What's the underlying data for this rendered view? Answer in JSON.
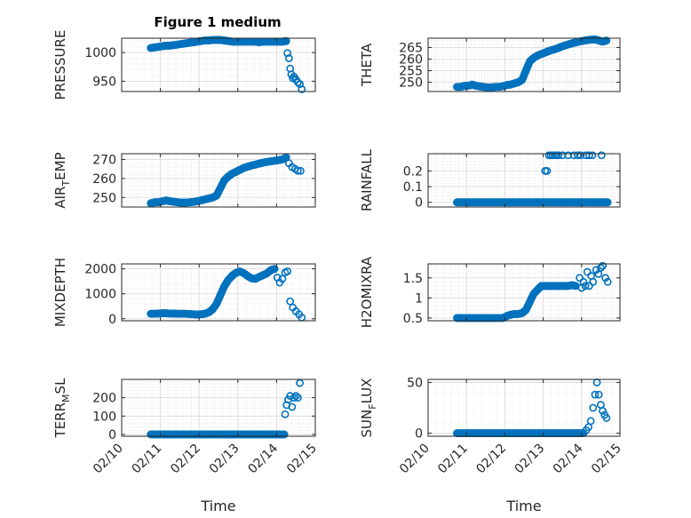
{
  "figure": {
    "title": "Figure 1 medium",
    "marker_color": "#0072BD",
    "axis_color": "#262626",
    "grid_color": "#d9d9d9"
  },
  "chart_data": [
    {
      "type": "scatter",
      "id": "pressure",
      "ylabel": "PRESSURE",
      "ylim": [
        932,
        1025
      ],
      "yticks": [
        950,
        1000
      ],
      "ytick_labels": [
        "950",
        "1000"
      ],
      "xlim": [
        0,
        5
      ],
      "xticks": [
        0,
        1,
        2,
        3,
        4,
        5
      ],
      "xtick_labels": [],
      "xlabel": "",
      "grid": true,
      "segments": [
        {
          "x": [
            0.75,
            0.85,
            0.95,
            1.05,
            1.15,
            1.25,
            1.35,
            1.45,
            1.55,
            1.65,
            1.75,
            1.85,
            1.95,
            2.05,
            2.15,
            2.25,
            2.35,
            2.45,
            2.55,
            2.65,
            2.75,
            2.85,
            2.95,
            3.05,
            3.15,
            3.25,
            3.35,
            3.45,
            3.55,
            3.65,
            3.75,
            3.85,
            3.95,
            4.05,
            4.15,
            4.25
          ],
          "y": [
            1008,
            1009,
            1010,
            1011,
            1012,
            1012,
            1013,
            1014,
            1015,
            1016,
            1017,
            1018,
            1019,
            1020,
            1021,
            1021,
            1022,
            1022,
            1022,
            1021,
            1020,
            1019,
            1019,
            1019,
            1019,
            1019,
            1019,
            1019,
            1018,
            1019,
            1019,
            1019,
            1019,
            1019,
            1019,
            1020
          ]
        }
      ],
      "points": [
        [
          4.28,
          999
        ],
        [
          4.32,
          990
        ],
        [
          4.35,
          972
        ],
        [
          4.38,
          962
        ],
        [
          4.42,
          955
        ],
        [
          4.45,
          958
        ],
        [
          4.5,
          953
        ],
        [
          4.55,
          948
        ],
        [
          4.6,
          945
        ],
        [
          4.65,
          936
        ]
      ]
    },
    {
      "type": "scatter",
      "id": "theta",
      "ylabel": "THETA",
      "ylim": [
        246,
        269
      ],
      "yticks": [
        250,
        255,
        260,
        265
      ],
      "ytick_labels": [
        "250",
        "255",
        "260",
        "265"
      ],
      "xlim": [
        0,
        5
      ],
      "xticks": [
        0,
        1,
        2,
        3,
        4,
        5
      ],
      "xtick_labels": [],
      "xlabel": "",
      "grid": true,
      "segments": [
        {
          "x": [
            0.75,
            0.85,
            0.95,
            1.05,
            1.15,
            1.25,
            1.35,
            1.45,
            1.55,
            1.65,
            1.75,
            1.85,
            1.95,
            2.05,
            2.15,
            2.25,
            2.35,
            2.45,
            2.55,
            2.65,
            2.75,
            2.85,
            2.95,
            3.05,
            3.15,
            3.25,
            3.35,
            3.45,
            3.55,
            3.65,
            3.75,
            3.85,
            3.95,
            4.05,
            4.15,
            4.25,
            4.35,
            4.45,
            4.55,
            4.65
          ],
          "y": [
            248,
            248,
            248.5,
            248.5,
            249,
            248.5,
            248.2,
            248,
            247.8,
            247.8,
            248,
            248,
            248.3,
            248.8,
            249,
            249.5,
            250,
            251,
            255,
            259,
            260.5,
            261.5,
            262.2,
            262.8,
            263.5,
            264,
            264.5,
            265.2,
            265.8,
            266.3,
            266.8,
            267.2,
            267.6,
            267.9,
            268.2,
            268.4,
            268.5,
            268,
            267.5,
            268
          ]
        }
      ],
      "points": []
    },
    {
      "type": "scatter",
      "id": "air_temp",
      "ylabel": "AIR_TEMP",
      "ylim": [
        245,
        273
      ],
      "yticks": [
        250,
        260,
        270
      ],
      "ytick_labels": [
        "250",
        "260",
        "270"
      ],
      "xlim": [
        0,
        5
      ],
      "xticks": [
        0,
        1,
        2,
        3,
        4,
        5
      ],
      "xtick_labels": [],
      "xlabel": "",
      "grid": true,
      "segments": [
        {
          "x": [
            0.75,
            0.85,
            0.95,
            1.05,
            1.15,
            1.25,
            1.35,
            1.45,
            1.55,
            1.65,
            1.75,
            1.85,
            1.95,
            2.05,
            2.15,
            2.25,
            2.35,
            2.45,
            2.55,
            2.65,
            2.75,
            2.85,
            2.95,
            3.05,
            3.15,
            3.25,
            3.35,
            3.45,
            3.55,
            3.65,
            3.75,
            3.85,
            3.95,
            4.05,
            4.15,
            4.25
          ],
          "y": [
            247,
            247.5,
            247.5,
            248,
            248.5,
            248,
            247.8,
            247.5,
            247.3,
            247.3,
            247.5,
            247.7,
            248,
            248.5,
            249,
            249.5,
            250,
            251,
            255,
            259,
            261,
            262.5,
            263.5,
            264.5,
            265.5,
            266.2,
            266.8,
            267.3,
            267.8,
            268.3,
            268.7,
            269,
            269.3,
            269.6,
            270,
            271
          ]
        }
      ],
      "points": [
        [
          4.32,
          268
        ],
        [
          4.4,
          266
        ],
        [
          4.48,
          265
        ],
        [
          4.55,
          264
        ],
        [
          4.62,
          264
        ]
      ]
    },
    {
      "type": "scatter",
      "id": "rainfall",
      "ylabel": "RAINFALL",
      "ylim": [
        -0.03,
        0.31
      ],
      "yticks": [
        0,
        0.1,
        0.2
      ],
      "ytick_labels": [
        "0",
        "0.1",
        "0.2"
      ],
      "xlim": [
        0,
        5
      ],
      "xticks": [
        0,
        1,
        2,
        3,
        4,
        5
      ],
      "xtick_labels": [],
      "xlabel": "",
      "grid": true,
      "segments": [
        {
          "x": [
            0.75,
            0.85,
            0.95,
            1.05,
            1.15,
            1.25,
            1.35,
            1.45,
            1.55,
            1.65,
            1.75,
            1.85,
            1.95,
            2.05,
            2.15,
            2.25,
            2.35,
            2.45,
            2.55,
            2.65,
            2.75,
            2.85,
            2.95,
            3.05,
            3.15,
            3.25,
            3.35,
            3.45,
            3.55,
            3.65,
            3.75,
            3.85,
            3.95,
            4.05,
            4.15,
            4.25,
            4.35,
            4.45,
            4.55,
            4.65
          ],
          "y": [
            0,
            0,
            0,
            0,
            0,
            0,
            0,
            0,
            0,
            0,
            0,
            0,
            0,
            0,
            0,
            0,
            0,
            0,
            0,
            0,
            0,
            0,
            0,
            0,
            0,
            0,
            0,
            0,
            0,
            0,
            0,
            0,
            0,
            0,
            0,
            0,
            0,
            0,
            0,
            0
          ]
        }
      ],
      "points": [
        [
          3.05,
          0.2
        ],
        [
          3.1,
          0.2
        ],
        [
          3.15,
          0.3
        ],
        [
          3.2,
          0.3
        ],
        [
          3.25,
          0.3
        ],
        [
          3.3,
          0.3
        ],
        [
          3.35,
          0.3
        ],
        [
          3.4,
          0.3
        ],
        [
          3.5,
          0.3
        ],
        [
          3.58,
          0
        ],
        [
          3.65,
          0.3
        ],
        [
          3.72,
          0
        ],
        [
          3.8,
          0.3
        ],
        [
          3.9,
          0.3
        ],
        [
          3.98,
          0.3
        ],
        [
          4.05,
          0
        ],
        [
          4.12,
          0.3
        ],
        [
          4.2,
          0.3
        ],
        [
          4.28,
          0.3
        ],
        [
          4.36,
          0
        ],
        [
          4.44,
          0
        ],
        [
          4.52,
          0.3
        ],
        [
          4.6,
          0
        ],
        [
          4.68,
          0
        ]
      ]
    },
    {
      "type": "scatter",
      "id": "mixdepth",
      "ylabel": "MIXDEPTH",
      "ylim": [
        -80,
        2200
      ],
      "yticks": [
        0,
        1000,
        2000
      ],
      "ytick_labels": [
        "0",
        "1000",
        "2000"
      ],
      "xlim": [
        0,
        5
      ],
      "xticks": [
        0,
        1,
        2,
        3,
        4,
        5
      ],
      "xtick_labels": [],
      "xlabel": "",
      "grid": true,
      "segments": [
        {
          "x": [
            0.75,
            0.85,
            0.95,
            1.05,
            1.15,
            1.25,
            1.35,
            1.45,
            1.55,
            1.65,
            1.75,
            1.85,
            1.95,
            2.05,
            2.15,
            2.25,
            2.35,
            2.45,
            2.55,
            2.65,
            2.75,
            2.85,
            2.95,
            3.05,
            3.15,
            3.25,
            3.35,
            3.45,
            3.55,
            3.65,
            3.75,
            3.85,
            3.95
          ],
          "y": [
            200,
            200,
            210,
            220,
            220,
            210,
            210,
            200,
            200,
            200,
            190,
            180,
            170,
            180,
            200,
            260,
            380,
            600,
            950,
            1300,
            1550,
            1720,
            1840,
            1900,
            1830,
            1720,
            1620,
            1600,
            1680,
            1750,
            1820,
            1950,
            2000
          ]
        }
      ],
      "points": [
        [
          4.02,
          1650
        ],
        [
          4.08,
          1450
        ],
        [
          4.15,
          1600
        ],
        [
          4.22,
          1850
        ],
        [
          4.28,
          1900
        ],
        [
          4.35,
          700
        ],
        [
          4.42,
          450
        ],
        [
          4.5,
          300
        ],
        [
          4.58,
          180
        ],
        [
          4.65,
          50
        ]
      ]
    },
    {
      "type": "scatter",
      "id": "h2omixra",
      "ylabel": "H2OMIXRA",
      "ylim": [
        0.43,
        1.85
      ],
      "yticks": [
        0.5,
        1,
        1.5
      ],
      "ytick_labels": [
        "0.5",
        "1",
        "1.5"
      ],
      "xlim": [
        0,
        5
      ],
      "xticks": [
        0,
        1,
        2,
        3,
        4,
        5
      ],
      "xtick_labels": [],
      "xlabel": "",
      "grid": true,
      "segments": [
        {
          "x": [
            0.75,
            0.85,
            0.95,
            1.05,
            1.15,
            1.25,
            1.35,
            1.45,
            1.55,
            1.65,
            1.75,
            1.85,
            1.95,
            2.05,
            2.15,
            2.25,
            2.35,
            2.45,
            2.55,
            2.65,
            2.75,
            2.85,
            2.95,
            3.05,
            3.15,
            3.25,
            3.35,
            3.45,
            3.55,
            3.65,
            3.75,
            3.85
          ],
          "y": [
            0.5,
            0.5,
            0.5,
            0.5,
            0.5,
            0.5,
            0.5,
            0.5,
            0.5,
            0.5,
            0.5,
            0.5,
            0.5,
            0.55,
            0.58,
            0.6,
            0.6,
            0.62,
            0.7,
            0.9,
            1.1,
            1.2,
            1.3,
            1.3,
            1.3,
            1.3,
            1.3,
            1.3,
            1.3,
            1.3,
            1.32,
            1.3
          ]
        }
      ],
      "points": [
        [
          3.95,
          1.5
        ],
        [
          4.0,
          1.25
        ],
        [
          4.05,
          1.4
        ],
        [
          4.1,
          1.3
        ],
        [
          4.15,
          1.65
        ],
        [
          4.2,
          1.3
        ],
        [
          4.25,
          1.55
        ],
        [
          4.3,
          1.4
        ],
        [
          4.38,
          1.7
        ],
        [
          4.44,
          1.6
        ],
        [
          4.5,
          1.75
        ],
        [
          4.55,
          1.8
        ],
        [
          4.62,
          1.5
        ],
        [
          4.68,
          1.4
        ]
      ]
    },
    {
      "type": "scatter",
      "id": "terr_msl",
      "ylabel": "TERR_MSL",
      "ylim": [
        -10,
        300
      ],
      "yticks": [
        0,
        100,
        200
      ],
      "ytick_labels": [
        "0",
        "100",
        "200"
      ],
      "xlim": [
        0,
        5
      ],
      "xticks": [
        0,
        1,
        2,
        3,
        4,
        5
      ],
      "xtick_labels": [
        "02/10",
        "02/11",
        "02/12",
        "02/13",
        "02/14",
        "02/15"
      ],
      "xlabel": "Time",
      "grid": true,
      "segments": [
        {
          "x": [
            0.75,
            0.9,
            1.05,
            1.2,
            1.35,
            1.5,
            1.65,
            1.8,
            1.95,
            2.1,
            2.25,
            2.4,
            2.55,
            2.7,
            2.85,
            3.0,
            3.15,
            3.3,
            3.45,
            3.6,
            3.75,
            3.9,
            4.05,
            4.2
          ],
          "y": [
            0,
            0,
            0,
            0,
            0,
            0,
            0,
            0,
            0,
            0,
            0,
            0,
            0,
            0,
            0,
            0,
            0,
            0,
            0,
            0,
            0,
            0,
            0,
            0
          ]
        }
      ],
      "points": [
        [
          4.22,
          110
        ],
        [
          4.26,
          160
        ],
        [
          4.3,
          190
        ],
        [
          4.35,
          210
        ],
        [
          4.4,
          150
        ],
        [
          4.45,
          200
        ],
        [
          4.5,
          210
        ],
        [
          4.55,
          200
        ],
        [
          4.6,
          280
        ]
      ]
    },
    {
      "type": "scatter",
      "id": "sun_flux",
      "ylabel": "SUN_FLUX",
      "ylim": [
        -3,
        53
      ],
      "yticks": [
        0,
        50
      ],
      "ytick_labels": [
        "0",
        "50"
      ],
      "xlim": [
        0,
        5
      ],
      "xticks": [
        0,
        1,
        2,
        3,
        4,
        5
      ],
      "xtick_labels": [
        "02/10",
        "02/11",
        "02/12",
        "02/13",
        "02/14",
        "02/15"
      ],
      "xlabel": "Time",
      "grid": true,
      "segments": [
        {
          "x": [
            0.75,
            0.9,
            1.05,
            1.2,
            1.35,
            1.5,
            1.65,
            1.8,
            1.95,
            2.1,
            2.25,
            2.4,
            2.55,
            2.7,
            2.85,
            3.0,
            3.15,
            3.3,
            3.45,
            3.6,
            3.75,
            3.9,
            4.05
          ],
          "y": [
            0,
            0,
            0,
            0,
            0,
            0,
            0,
            0,
            0,
            0,
            0,
            0,
            0,
            0,
            0,
            0,
            0,
            0,
            0,
            0,
            0,
            0,
            0
          ]
        }
      ],
      "points": [
        [
          4.12,
          3
        ],
        [
          4.18,
          6
        ],
        [
          4.24,
          12
        ],
        [
          4.3,
          25
        ],
        [
          4.35,
          38
        ],
        [
          4.4,
          50
        ],
        [
          4.45,
          38
        ],
        [
          4.5,
          28
        ],
        [
          4.55,
          22
        ],
        [
          4.6,
          18
        ],
        [
          4.65,
          15
        ]
      ]
    }
  ]
}
